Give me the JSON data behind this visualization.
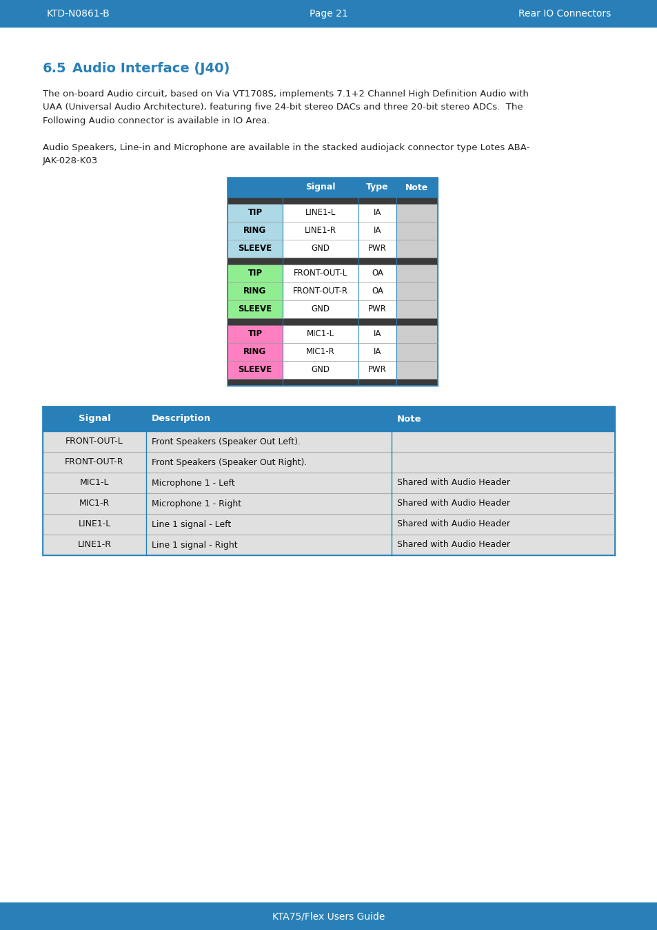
{
  "header_bg": "#2980b9",
  "page_bg": "#f0f4f8",
  "body_text_color": "#222222",
  "section_number_color": "#2980b9",
  "header_left": "KTD-N0861-B",
  "header_center": "Page 21",
  "header_right": "Rear IO Connectors",
  "footer_text": "KTA75/Flex Users Guide",
  "section_num": "6.5",
  "section_name": "Audio Interface (J40)",
  "para1": "The on-board Audio circuit, based on Via VT1708S, implements 7.1+2 Channel High Definition Audio with\nUAA (Universal Audio Architecture), featuring five 24-bit stereo DACs and three 20-bit stereo ADCs.  The\nFollowing Audio connector is available in IO Area.",
  "para2": "Audio Speakers, Line-in and Microphone are available in the stacked audiojack connector type Lotes ABA-\nJAK-028-K03",
  "conn_tbl": {
    "dark_col_bg": "#3a3a3a",
    "header_bg": "#2980b9",
    "groups": [
      {
        "color": "#add8e6",
        "text_color": "#000000",
        "rows": [
          {
            "label": "TIP",
            "signal": "LINE1-L",
            "type": "IA",
            "note": ""
          },
          {
            "label": "RING",
            "signal": "LINE1-R",
            "type": "IA",
            "note": ""
          },
          {
            "label": "SLEEVE",
            "signal": "GND",
            "type": "PWR",
            "note": ""
          }
        ]
      },
      {
        "color": "#90ee90",
        "text_color": "#000000",
        "rows": [
          {
            "label": "TIP",
            "signal": "FRONT-OUT-L",
            "type": "OA",
            "note": ""
          },
          {
            "label": "RING",
            "signal": "FRONT-OUT-R",
            "type": "OA",
            "note": ""
          },
          {
            "label": "SLEEVE",
            "signal": "GND",
            "type": "PWR",
            "note": ""
          }
        ]
      },
      {
        "color": "#ff80c0",
        "text_color": "#000000",
        "rows": [
          {
            "label": "TIP",
            "signal": "MIC1-L",
            "type": "IA",
            "note": ""
          },
          {
            "label": "RING",
            "signal": "MIC1-R",
            "type": "IA",
            "note": ""
          },
          {
            "label": "SLEEVE",
            "signal": "GND",
            "type": "PWR",
            "note": ""
          }
        ]
      }
    ]
  },
  "sig_tbl": {
    "headers": [
      "Signal",
      "Description",
      "Note"
    ],
    "header_bg": "#2980b9",
    "row_bg": "#e8e8e8",
    "rows": [
      {
        "signal": "FRONT-OUT-L",
        "desc": "Front Speakers (Speaker Out Left).",
        "note": "",
        "shaded": false
      },
      {
        "signal": "FRONT-OUT-R",
        "desc": "Front Speakers (Speaker Out Right).",
        "note": "",
        "shaded": false
      },
      {
        "signal": "MIC1-L",
        "desc": "Microphone 1 - Left",
        "note": "Shared with Audio Header",
        "shaded": false
      },
      {
        "signal": "MIC1-R",
        "desc": "Microphone 1 - Right",
        "note": "Shared with Audio Header",
        "shaded": false
      },
      {
        "signal": "LINE1-L",
        "desc": "Line 1 signal - Left",
        "note": "Shared with Audio Header",
        "shaded": false
      },
      {
        "signal": "LINE1-R",
        "desc": "Line 1 signal - Right",
        "note": "Shared with Audio Header",
        "shaded": false
      }
    ]
  }
}
